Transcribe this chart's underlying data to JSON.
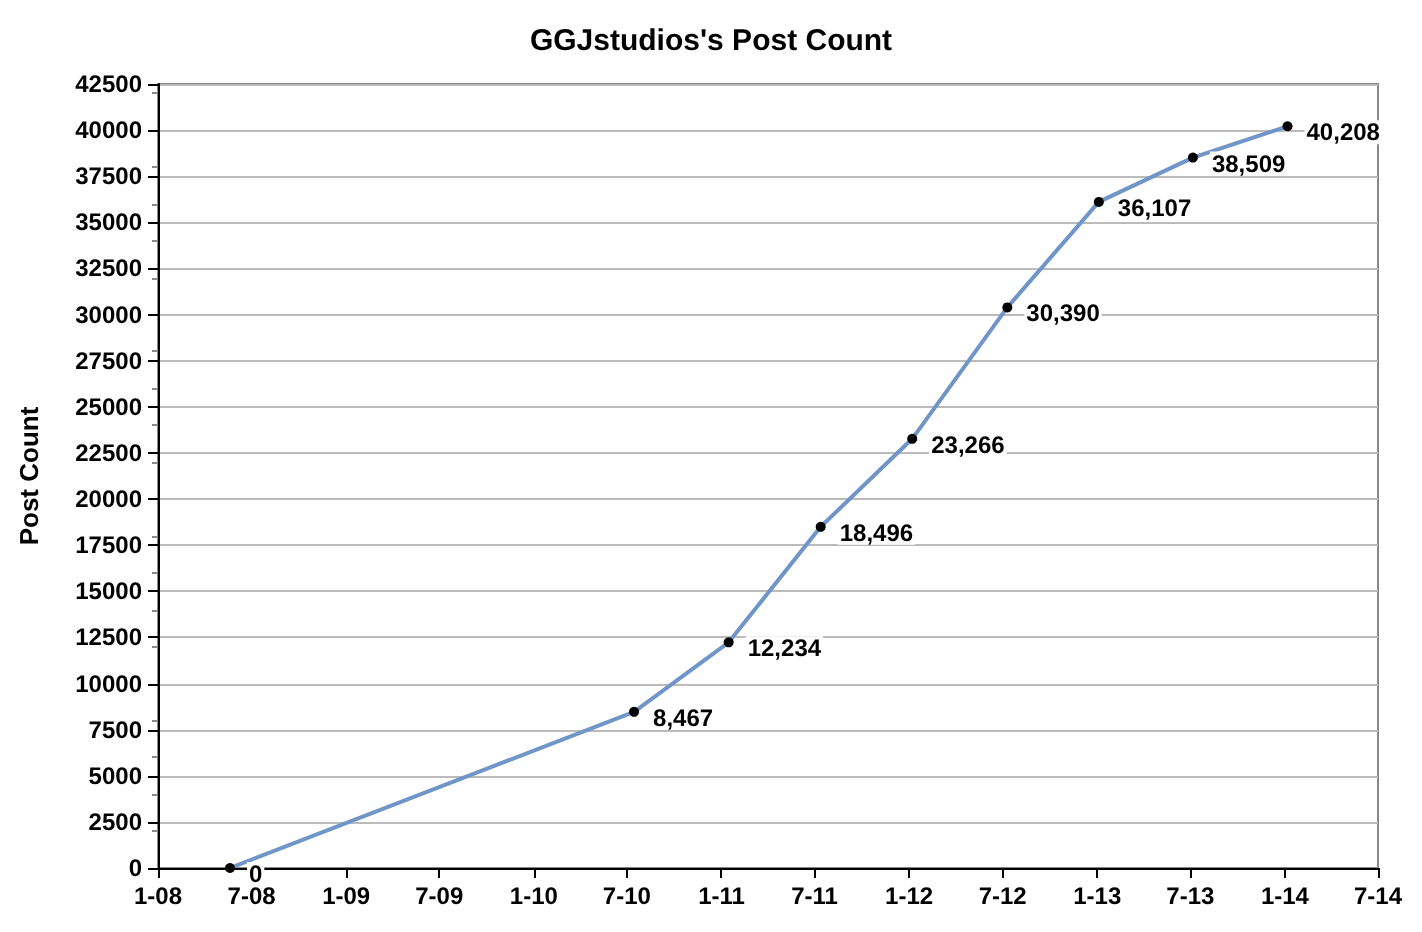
{
  "chart_data": {
    "type": "line",
    "title": "GGJstudios's Post Count",
    "ylabel": "Post Count",
    "x": [
      "2008-05-20",
      "2010-07-15",
      "2011-01-15",
      "2011-07-13",
      "2012-01-07",
      "2012-07-10",
      "2013-01-04",
      "2013-07-06",
      "2014-01-06"
    ],
    "series": [
      {
        "color": "#6f95c9",
        "values": [
          0,
          8467,
          12234,
          18496,
          23266,
          30390,
          36107,
          38509,
          40208
        ],
        "value_labels": [
          "0",
          "8,467",
          "12,234",
          "18,496",
          "23,266",
          "30,390",
          "36,107",
          "38,509",
          "40,208"
        ]
      }
    ],
    "xlim": [
      "2008-01",
      "2014-07"
    ],
    "xticks": [
      {
        "value": "2008-01",
        "label": "1-08"
      },
      {
        "value": "2008-07",
        "label": "7-08"
      },
      {
        "value": "2009-01",
        "label": "1-09"
      },
      {
        "value": "2009-07",
        "label": "7-09"
      },
      {
        "value": "2010-01",
        "label": "1-10"
      },
      {
        "value": "2010-07",
        "label": "7-10"
      },
      {
        "value": "2011-01",
        "label": "1-11"
      },
      {
        "value": "2011-07",
        "label": "7-11"
      },
      {
        "value": "2012-01",
        "label": "1-12"
      },
      {
        "value": "2012-07",
        "label": "7-12"
      },
      {
        "value": "2013-01",
        "label": "1-13"
      },
      {
        "value": "2013-07",
        "label": "7-13"
      },
      {
        "value": "2014-01",
        "label": "1-14"
      },
      {
        "value": "2014-07",
        "label": "7-14"
      }
    ],
    "ylim": [
      0,
      42500
    ],
    "yticks": [
      0,
      2500,
      5000,
      7500,
      10000,
      12500,
      15000,
      17500,
      20000,
      22500,
      25000,
      27500,
      30000,
      32500,
      35000,
      37500,
      40000,
      42500
    ],
    "grid": "y",
    "marker": "circle",
    "line_style": "solid"
  }
}
